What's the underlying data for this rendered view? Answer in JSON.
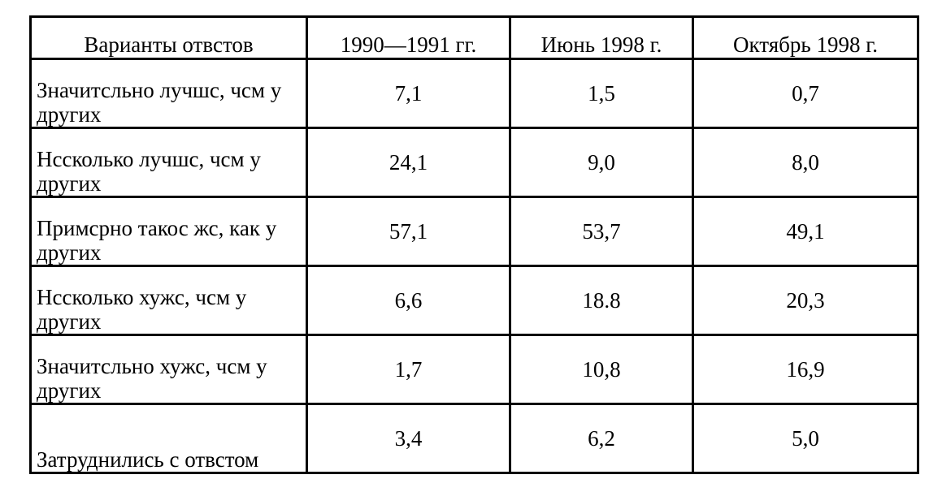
{
  "table": {
    "header": [
      "Варианты отвстов",
      "1990—1991 гг.",
      "Июнь 1998 г.",
      "Октябрь 1998 г."
    ],
    "rows": [
      [
        "Значитсльно лучшс, чсм у других",
        "7,1",
        "1,5",
        "0,7"
      ],
      [
        "Нссколько лучшс, чсм у других",
        "24,1",
        "9,0",
        "8,0"
      ],
      [
        "Примсрно такос жс, как у других",
        "57,1",
        "53,7",
        "49,1"
      ],
      [
        "Нссколько хужс, чсм у других",
        "6,6",
        "18.8",
        "20,3"
      ],
      [
        "Значитсльно хужс, чсм у других",
        "1,7",
        "10,8",
        "16,9"
      ],
      [
        "Затруднились с отвстом",
        "3,4",
        "6,2",
        "5,0"
      ]
    ]
  }
}
